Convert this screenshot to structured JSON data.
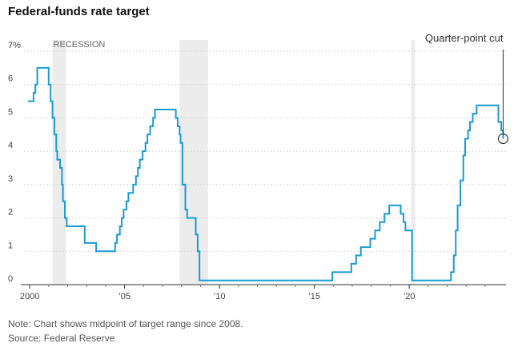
{
  "chart_data": {
    "type": "line",
    "title": "Federal-funds rate target",
    "xlabel": "",
    "ylabel": "",
    "xlim": [
      1999.7,
      2025.1
    ],
    "ylim": [
      0,
      7
    ],
    "x_ticks": [
      {
        "value": 2000,
        "label": "2000"
      },
      {
        "value": 2005,
        "label": "’05"
      },
      {
        "value": 2010,
        "label": "’10"
      },
      {
        "value": 2015,
        "label": "’15"
      },
      {
        "value": 2020,
        "label": "’20"
      }
    ],
    "y_ticks": [
      {
        "value": 7,
        "label": "7%"
      },
      {
        "value": 6,
        "label": "6"
      },
      {
        "value": 5,
        "label": "5"
      },
      {
        "value": 4,
        "label": "4"
      },
      {
        "value": 3,
        "label": "3"
      },
      {
        "value": 2,
        "label": "2"
      },
      {
        "value": 1,
        "label": "1"
      },
      {
        "value": 0,
        "label": "0"
      }
    ],
    "grid": {
      "horizontal": true,
      "vertical": false
    },
    "recession_label": "RECESSION",
    "recessions": [
      {
        "start": 2001.2,
        "end": 2001.9
      },
      {
        "start": 2007.9,
        "end": 2009.4
      },
      {
        "start": 2020.1,
        "end": 2020.3
      }
    ],
    "series": [
      {
        "color": "#1a9ad6",
        "step": true,
        "points": [
          [
            1999.9,
            5.5
          ],
          [
            2000.2,
            5.75
          ],
          [
            2000.3,
            6.0
          ],
          [
            2000.4,
            6.5
          ],
          [
            2001.0,
            6.0
          ],
          [
            2001.1,
            5.5
          ],
          [
            2001.2,
            5.0
          ],
          [
            2001.3,
            4.5
          ],
          [
            2001.4,
            4.0
          ],
          [
            2001.45,
            3.75
          ],
          [
            2001.6,
            3.5
          ],
          [
            2001.7,
            3.0
          ],
          [
            2001.75,
            2.5
          ],
          [
            2001.85,
            2.0
          ],
          [
            2001.95,
            1.75
          ],
          [
            2002.9,
            1.25
          ],
          [
            2003.5,
            1.0
          ],
          [
            2004.5,
            1.25
          ],
          [
            2004.6,
            1.5
          ],
          [
            2004.75,
            1.75
          ],
          [
            2004.85,
            2.0
          ],
          [
            2004.95,
            2.25
          ],
          [
            2005.1,
            2.5
          ],
          [
            2005.2,
            2.75
          ],
          [
            2005.45,
            3.0
          ],
          [
            2005.6,
            3.25
          ],
          [
            2005.7,
            3.5
          ],
          [
            2005.8,
            3.75
          ],
          [
            2005.95,
            4.0
          ],
          [
            2006.1,
            4.25
          ],
          [
            2006.2,
            4.5
          ],
          [
            2006.35,
            4.75
          ],
          [
            2006.5,
            5.0
          ],
          [
            2006.6,
            5.25
          ],
          [
            2007.7,
            5.0
          ],
          [
            2007.8,
            4.75
          ],
          [
            2007.9,
            4.5
          ],
          [
            2007.95,
            4.25
          ],
          [
            2008.05,
            3.0
          ],
          [
            2008.2,
            2.25
          ],
          [
            2008.3,
            2.0
          ],
          [
            2008.75,
            1.5
          ],
          [
            2008.85,
            1.0
          ],
          [
            2008.95,
            0.125
          ],
          [
            2015.95,
            0.375
          ],
          [
            2016.95,
            0.625
          ],
          [
            2017.2,
            0.875
          ],
          [
            2017.45,
            1.125
          ],
          [
            2017.95,
            1.375
          ],
          [
            2018.2,
            1.625
          ],
          [
            2018.45,
            1.875
          ],
          [
            2018.7,
            2.125
          ],
          [
            2018.95,
            2.375
          ],
          [
            2019.55,
            2.125
          ],
          [
            2019.7,
            1.875
          ],
          [
            2019.8,
            1.625
          ],
          [
            2020.15,
            0.125
          ],
          [
            2022.2,
            0.375
          ],
          [
            2022.35,
            0.875
          ],
          [
            2022.45,
            1.625
          ],
          [
            2022.55,
            2.375
          ],
          [
            2022.7,
            3.125
          ],
          [
            2022.85,
            3.875
          ],
          [
            2022.95,
            4.375
          ],
          [
            2023.1,
            4.625
          ],
          [
            2023.2,
            4.875
          ],
          [
            2023.35,
            5.125
          ],
          [
            2023.55,
            5.375
          ],
          [
            2024.7,
            4.875
          ],
          [
            2024.85,
            4.625
          ],
          [
            2024.95,
            4.375
          ]
        ]
      }
    ],
    "annotation": {
      "text": "Quarter-point cut",
      "x": 2024.95,
      "y": 4.375
    }
  },
  "notes": {
    "note": "Note: Chart shows midpoint of target range since 2008.",
    "source": "Source: Federal Reserve"
  }
}
